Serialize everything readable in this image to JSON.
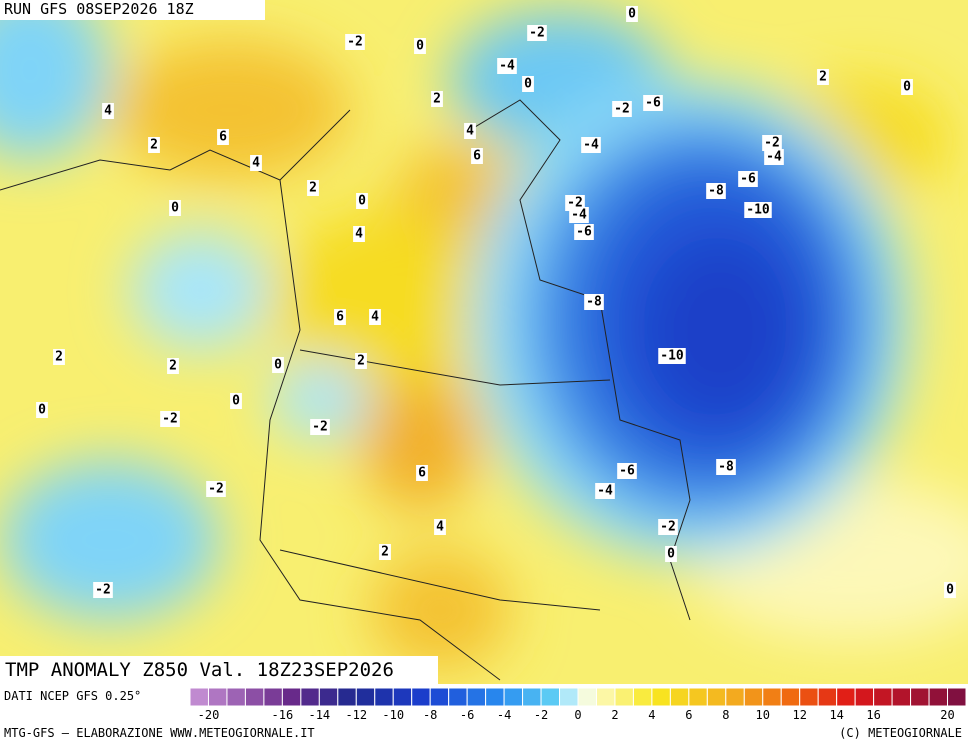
{
  "header": {
    "run": "RUN GFS 08SEP2026 18Z"
  },
  "map": {
    "title": "TMP ANOMALY Z850 Val. 18Z23SEP2026",
    "contour_labels": [
      -2,
      0,
      -2,
      0,
      -4,
      0,
      2,
      2,
      0,
      4,
      -2,
      -6,
      4,
      6,
      2,
      6,
      -4,
      -2,
      -4,
      4,
      2,
      0,
      -6,
      -8,
      0,
      -2,
      -4,
      -10,
      4,
      -6,
      -8,
      6,
      4,
      2,
      2,
      0,
      2,
      -10,
      0,
      0,
      -2,
      -2,
      6,
      -6,
      -8,
      -4,
      -2,
      4,
      -2,
      2,
      0,
      -2,
      0
    ]
  },
  "colorbar": {
    "source": "DATI NCEP GFS 0.25°",
    "ticks": [
      -20,
      -16,
      -14,
      -12,
      -10,
      -8,
      -6,
      -4,
      -2,
      0,
      2,
      4,
      6,
      8,
      10,
      12,
      14,
      16,
      20
    ]
  },
  "footer": {
    "left": "MTG-GFS — ELABORAZIONE WWW.METEOGIORNALE.IT",
    "right": "(C) METEOGIORNALE"
  }
}
